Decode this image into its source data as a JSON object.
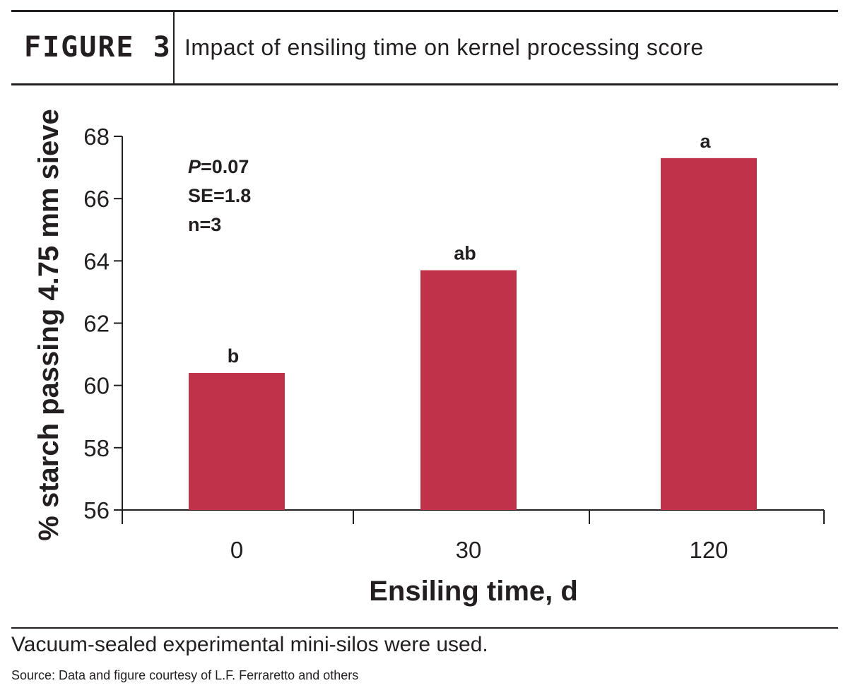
{
  "header": {
    "figure_label": "FIGURE 3",
    "title": "Impact of ensiling time on kernel processing score"
  },
  "chart_data": {
    "type": "bar",
    "categories": [
      "0",
      "30",
      "120"
    ],
    "values": [
      60.4,
      63.7,
      67.3
    ],
    "significance_letters": [
      "b",
      "ab",
      "a"
    ],
    "xlabel": "Ensiling time, d",
    "ylabel": "% starch passing 4.75 mm sieve",
    "ylim": [
      56,
      68
    ],
    "yticks": [
      56,
      58,
      60,
      62,
      64,
      66,
      68
    ],
    "bar_color": "#c0314a",
    "grid": false,
    "stats": {
      "p_symbol": "P",
      "p_value": "=0.07",
      "se": "SE=1.8",
      "n": "n=3"
    }
  },
  "footer": {
    "caption": "Vacuum-sealed experimental mini-silos were used.",
    "source": "Source: Data and figure courtesy of L.F. Ferraretto and others"
  }
}
